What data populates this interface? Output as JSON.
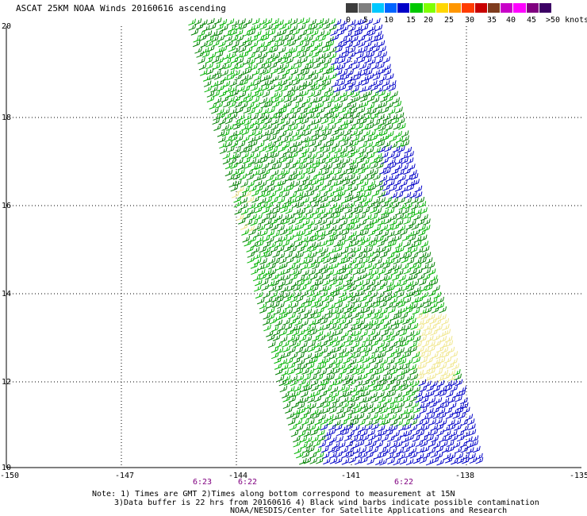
{
  "title": "ASCAT 25KM NOAA Winds 20160616 ascending",
  "colorbar": {
    "colors": [
      "#3c3c3c",
      "#7f7f7f",
      "#00c8ff",
      "#0064ff",
      "#0000c8",
      "#00c800",
      "#7fff00",
      "#ffd700",
      "#ff9600",
      "#ff3c00",
      "#c80000",
      "#7f3c1e",
      "#c800c8",
      "#ff00ff",
      "#800080",
      "#3c0064"
    ],
    "labels": [
      "0",
      "5",
      "10",
      "15",
      "20",
      "25",
      "30",
      "35",
      "40",
      "45",
      ">50 knots"
    ]
  },
  "axes": {
    "x_ticks": [
      "-150",
      "-147",
      "-144",
      "-141",
      "-138",
      "-135"
    ],
    "y_ticks": [
      "20",
      "18",
      "16",
      "14",
      "12",
      "10"
    ]
  },
  "times": [
    "6:23",
    "6:22",
    "6:22"
  ],
  "barb_colors": {
    "calm": "#00b400",
    "moderate": "#008000",
    "strong": "#0000c8",
    "yellow": "#f0e68c"
  },
  "notes": {
    "line1": "Note: 1) Times are GMT 2)Times along bottom correspond to measurement at 15N",
    "line2": "3)Data buffer is 22 hrs from 20160616 4) Black wind barbs indicate possible contamination",
    "credit": "NOAA/NESDIS/Center for Satellite Applications and Research"
  }
}
